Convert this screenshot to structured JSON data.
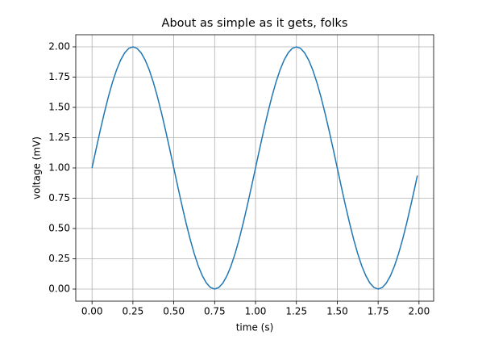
{
  "chart_data": {
    "type": "line",
    "title": "About as simple as it gets, folks",
    "xlabel": "time (s)",
    "ylabel": "voltage (mV)",
    "x": [
      0,
      0.025,
      0.05,
      0.075,
      0.1,
      0.125,
      0.15,
      0.175,
      0.2,
      0.225,
      0.25,
      0.275,
      0.3,
      0.325,
      0.35,
      0.375,
      0.4,
      0.425,
      0.45,
      0.475,
      0.5,
      0.525,
      0.55,
      0.575,
      0.6,
      0.625,
      0.65,
      0.675,
      0.7,
      0.725,
      0.75,
      0.775,
      0.8,
      0.825,
      0.85,
      0.875,
      0.9,
      0.925,
      0.95,
      0.975,
      1,
      1.025,
      1.05,
      1.075,
      1.1,
      1.125,
      1.15,
      1.175,
      1.2,
      1.225,
      1.25,
      1.275,
      1.3,
      1.325,
      1.35,
      1.375,
      1.4,
      1.425,
      1.45,
      1.475,
      1.5,
      1.525,
      1.55,
      1.575,
      1.6,
      1.625,
      1.65,
      1.675,
      1.7,
      1.725,
      1.75,
      1.775,
      1.8,
      1.825,
      1.85,
      1.875,
      1.9,
      1.925,
      1.95,
      1.975,
      1.99
    ],
    "series": [
      {
        "color": "#1f77b4",
        "values": [
          1,
          1.1564,
          1.309,
          1.454,
          1.5878,
          1.7071,
          1.809,
          1.891,
          1.9511,
          1.9877,
          2,
          1.9877,
          1.9511,
          1.891,
          1.809,
          1.7071,
          1.5878,
          1.454,
          1.309,
          1.1564,
          1,
          0.8436,
          0.691,
          0.546,
          0.4122,
          0.2929,
          0.191,
          0.109,
          0.0489,
          0.0123,
          0,
          0.0123,
          0.0489,
          0.109,
          0.191,
          0.2929,
          0.4122,
          0.546,
          0.691,
          0.8436,
          1,
          1.1564,
          1.309,
          1.454,
          1.5878,
          1.7071,
          1.809,
          1.891,
          1.9511,
          1.9877,
          2,
          1.9877,
          1.9511,
          1.891,
          1.809,
          1.7071,
          1.5878,
          1.454,
          1.309,
          1.1564,
          1,
          0.8436,
          0.691,
          0.546,
          0.4122,
          0.2929,
          0.191,
          0.109,
          0.0489,
          0.0123,
          0,
          0.0123,
          0.0489,
          0.109,
          0.191,
          0.2929,
          0.4122,
          0.546,
          0.691,
          0.8436,
          0.9372
        ]
      }
    ],
    "xlim": [
      -0.0995,
      2.0895
    ],
    "ylim": [
      -0.1,
      2.1
    ],
    "xticks": [
      {
        "value": 0,
        "label": "0.00"
      },
      {
        "value": 0.25,
        "label": "0.25"
      },
      {
        "value": 0.5,
        "label": "0.50"
      },
      {
        "value": 0.75,
        "label": "0.75"
      },
      {
        "value": 1,
        "label": "1.00"
      },
      {
        "value": 1.25,
        "label": "1.25"
      },
      {
        "value": 1.5,
        "label": "1.50"
      },
      {
        "value": 1.75,
        "label": "1.75"
      },
      {
        "value": 2,
        "label": "2.00"
      }
    ],
    "yticks": [
      {
        "value": 0,
        "label": "0.00"
      },
      {
        "value": 0.25,
        "label": "0.25"
      },
      {
        "value": 0.5,
        "label": "0.50"
      },
      {
        "value": 0.75,
        "label": "0.75"
      },
      {
        "value": 1,
        "label": "1.00"
      },
      {
        "value": 1.25,
        "label": "1.25"
      },
      {
        "value": 1.5,
        "label": "1.50"
      },
      {
        "value": 1.75,
        "label": "1.75"
      },
      {
        "value": 2,
        "label": "2.00"
      }
    ],
    "grid": true
  }
}
